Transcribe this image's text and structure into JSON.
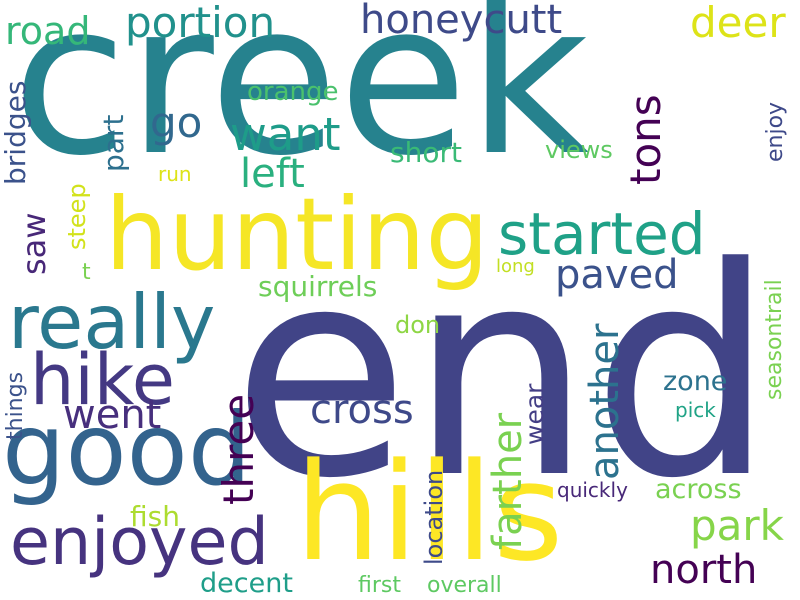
{
  "words": [
    {
      "text": "creek",
      "color": "#26828e"
    },
    {
      "text": "end",
      "color": "#414487"
    },
    {
      "text": "hunting",
      "color": "#f5e626"
    },
    {
      "text": "hills",
      "color": "#fde725"
    },
    {
      "text": "good",
      "color": "#33638d"
    },
    {
      "text": "really",
      "color": "#2a788e"
    },
    {
      "text": "hike",
      "color": "#443983"
    },
    {
      "text": "enjoyed",
      "color": "#46337f"
    },
    {
      "text": "started",
      "color": "#1fa187"
    },
    {
      "text": "honeycutt",
      "color": "#3e4a89"
    },
    {
      "text": "portion",
      "color": "#21918c"
    },
    {
      "text": "road",
      "color": "#35b779"
    },
    {
      "text": "deer",
      "color": "#dde318"
    },
    {
      "text": "want",
      "color": "#1e9c89"
    },
    {
      "text": "left",
      "color": "#2ab07f"
    },
    {
      "text": "go",
      "color": "#31688e"
    },
    {
      "text": "tons",
      "color": "#440154"
    },
    {
      "text": "paved",
      "color": "#3b528b"
    },
    {
      "text": "went",
      "color": "#472f7d"
    },
    {
      "text": "three",
      "color": "#440154"
    },
    {
      "text": "cross",
      "color": "#3e4989"
    },
    {
      "text": "farther",
      "color": "#7ad151"
    },
    {
      "text": "another",
      "color": "#2c728e"
    },
    {
      "text": "park",
      "color": "#86d549"
    },
    {
      "text": "north",
      "color": "#440154"
    },
    {
      "text": "squirrels",
      "color": "#6ece58"
    },
    {
      "text": "short",
      "color": "#3aba76"
    },
    {
      "text": "orange",
      "color": "#4ac16d"
    },
    {
      "text": "views",
      "color": "#5ec962"
    },
    {
      "text": "bridges",
      "color": "#3b528b"
    },
    {
      "text": "part",
      "color": "#2d708e"
    },
    {
      "text": "saw",
      "color": "#482878"
    },
    {
      "text": "steep",
      "color": "#d2e21b"
    },
    {
      "text": "t",
      "color": "#7ad151"
    },
    {
      "text": "run",
      "color": "#dde318"
    },
    {
      "text": "enjoy",
      "color": "#3e4989"
    },
    {
      "text": "long",
      "color": "#c2df23"
    },
    {
      "text": "don",
      "color": "#8ed645"
    },
    {
      "text": "zone",
      "color": "#2c728e"
    },
    {
      "text": "pick",
      "color": "#20a386"
    },
    {
      "text": "wear",
      "color": "#433e85"
    },
    {
      "text": "location",
      "color": "#3e4a89"
    },
    {
      "text": "seasontrail",
      "color": "#7ad151"
    },
    {
      "text": "things",
      "color": "#3b528b"
    },
    {
      "text": "quickly",
      "color": "#482878"
    },
    {
      "text": "across",
      "color": "#7ad151"
    },
    {
      "text": "fish",
      "color": "#addc30"
    },
    {
      "text": "decent",
      "color": "#1f9e89"
    },
    {
      "text": "first",
      "color": "#5ec962"
    },
    {
      "text": "overall",
      "color": "#5ec962"
    }
  ]
}
